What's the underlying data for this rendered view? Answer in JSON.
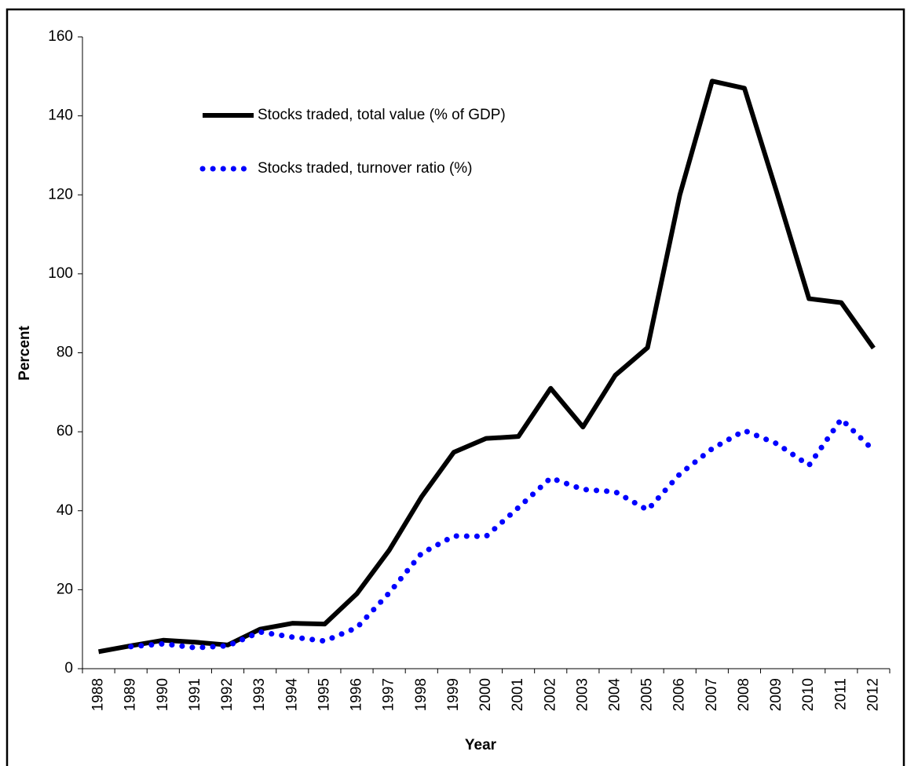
{
  "chart_data": {
    "type": "line",
    "x_label": "Year",
    "y_label": "Percent",
    "categories": [
      "1988",
      "1989",
      "1990",
      "1991",
      "1992",
      "1993",
      "1994",
      "1995",
      "1996",
      "1997",
      "1998",
      "1999",
      "2000",
      "2001",
      "2002",
      "2003",
      "2004",
      "2005",
      "2006",
      "2007",
      "2008",
      "2009",
      "2010",
      "2011",
      "2012"
    ],
    "series": [
      {
        "name": "Stocks traded, total value (% of GDP)",
        "color": "#000000",
        "style": "solid",
        "values": [
          4.3,
          5.8,
          7.2,
          6.7,
          6.0,
          10.0,
          11.5,
          11.3,
          19.0,
          30.0,
          43.5,
          54.8,
          58.3,
          58.8,
          71.0,
          61.2,
          74.3,
          81.3,
          120.0,
          148.8,
          147.0,
          120.7,
          93.7,
          92.7,
          81.2
        ]
      },
      {
        "name": "Stocks traded, turnover ratio (%)",
        "color": "#0000ff",
        "style": "dotted",
        "values": [
          null,
          5.6,
          6.3,
          5.3,
          5.8,
          9.3,
          8.0,
          7.0,
          10.4,
          19.2,
          29.2,
          33.6,
          33.5,
          40.8,
          48.3,
          45.4,
          44.8,
          40.2,
          49.3,
          55.7,
          60.3,
          57.0,
          51.5,
          63.2,
          55.3
        ]
      }
    ],
    "ylim": [
      0,
      160
    ],
    "yticks": [
      0,
      20,
      40,
      60,
      80,
      100,
      120,
      140,
      160
    ],
    "grid": false,
    "legend": "upper-left"
  }
}
